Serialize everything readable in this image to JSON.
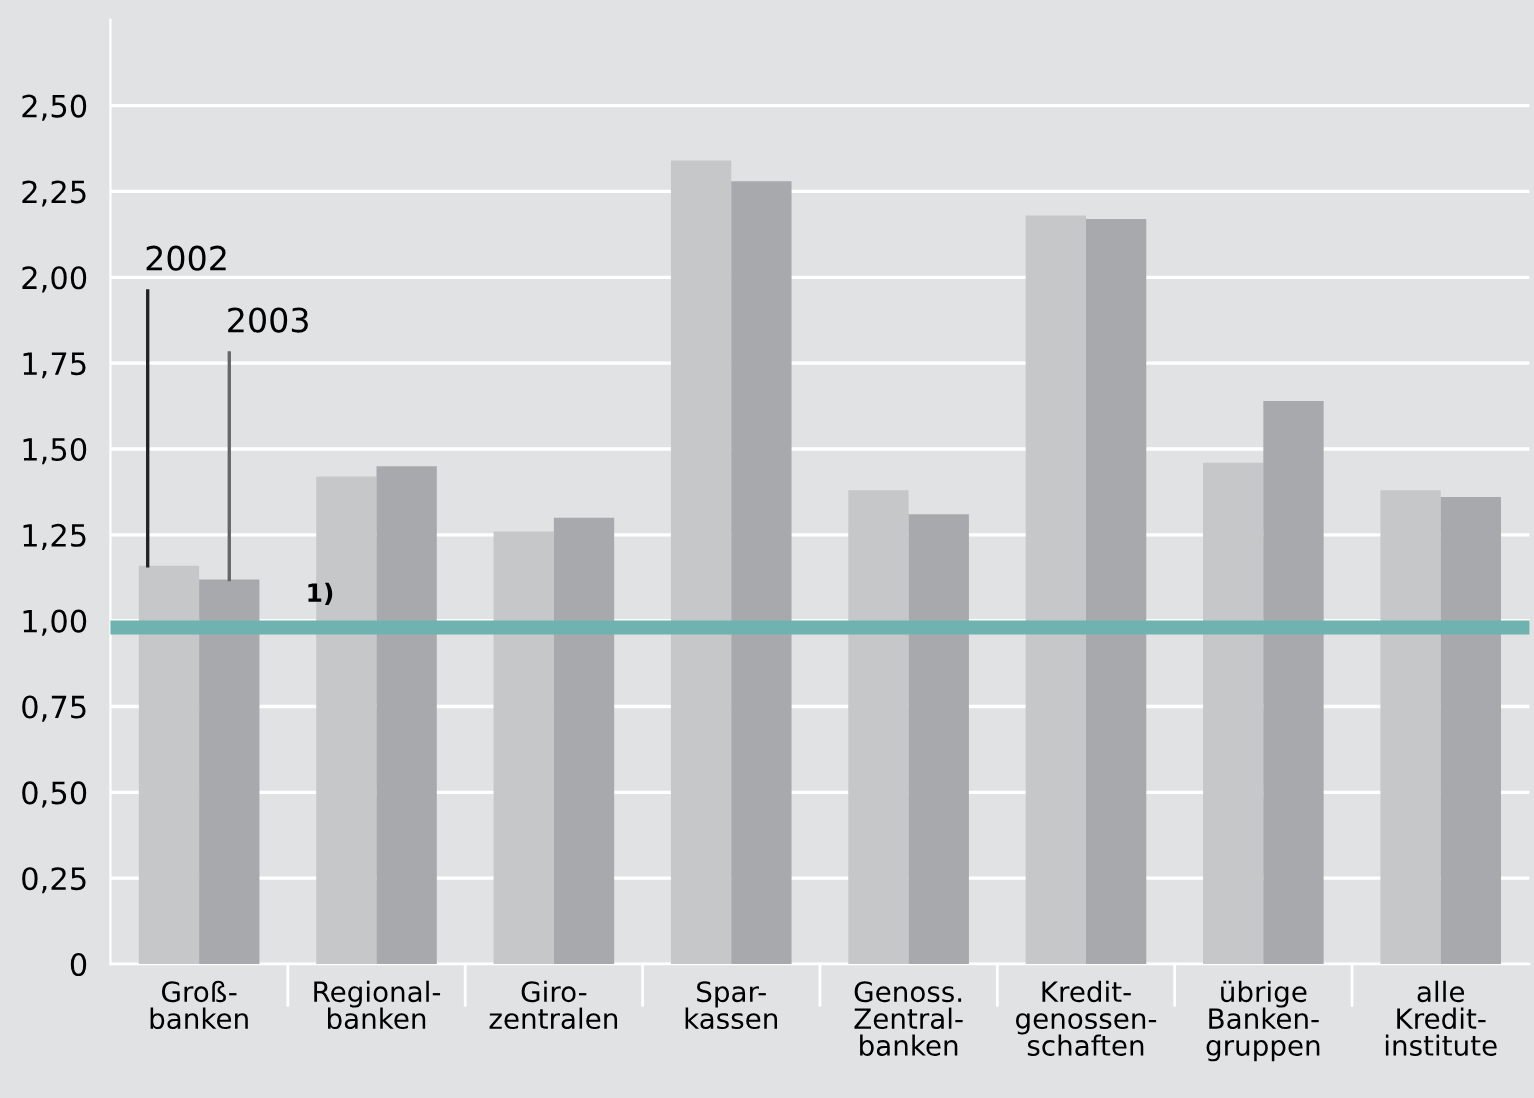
{
  "chart_data": {
    "type": "bar",
    "categories": [
      "Groß-\nbanken",
      "Regional-\nbanken",
      "Giro-\nzentralen",
      "Spar-\nkassen",
      "Genoss.\nZentral-\nbanken",
      "Kredit-\ngenossen-\nschaften",
      "übrige\nBanken-\ngruppen",
      "alle\nKredit-\ninstitute"
    ],
    "series": [
      {
        "name": "2002",
        "color": "#c6c7c9",
        "values": [
          1.16,
          1.42,
          1.26,
          2.34,
          1.38,
          2.18,
          1.46,
          1.38
        ]
      },
      {
        "name": "2003",
        "color": "#a8a9ad",
        "values": [
          1.12,
          1.45,
          1.3,
          2.28,
          1.31,
          2.17,
          1.64,
          1.36
        ]
      }
    ],
    "ylim": [
      0,
      2.75
    ],
    "yticks": [
      0,
      {
        "value": 0.25,
        "label": "0,25"
      },
      {
        "value": 0.5,
        "label": "0,50"
      },
      {
        "value": 0.75,
        "label": "0,75"
      },
      {
        "value": 1.0,
        "label": "1,00"
      },
      {
        "value": 1.25,
        "label": "1,25"
      },
      {
        "value": 1.5,
        "label": "1,50"
      },
      {
        "value": 1.75,
        "label": "1,75"
      },
      {
        "value": 2.0,
        "label": "2,00"
      },
      {
        "value": 2.25,
        "label": "2,25"
      },
      {
        "value": 2.5,
        "label": "2,50"
      }
    ],
    "grid": "y",
    "ref_lines": [
      {
        "axis": "y",
        "value": 0.98,
        "label": "1)",
        "color": "#6fb3b0"
      }
    ]
  }
}
